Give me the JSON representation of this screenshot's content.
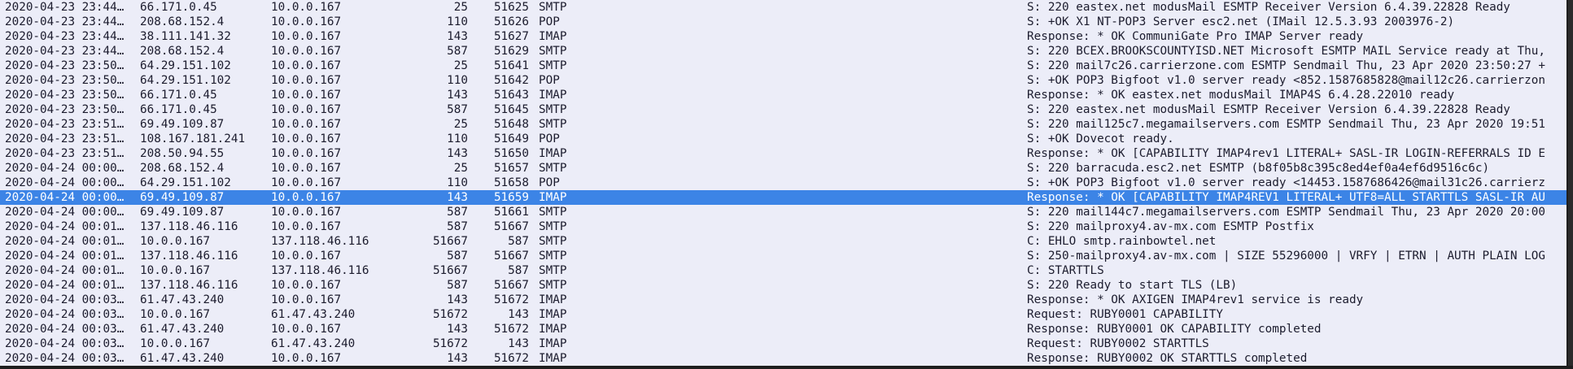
{
  "packets": [
    {
      "time": "2020-04-23 23:44…",
      "src": "66.171.0.45",
      "dst": "10.0.0.167",
      "sport": "25",
      "dport": "51625",
      "proto": "SMTP",
      "info": "S: 220 eastex.net modusMail ESMTP Receiver Version 6.4.39.22828 Ready",
      "selected": false
    },
    {
      "time": "2020-04-23 23:44…",
      "src": "208.68.152.4",
      "dst": "10.0.0.167",
      "sport": "110",
      "dport": "51626",
      "proto": "POP",
      "info": "S: +OK X1 NT-POP3 Server esc2.net (IMail 12.5.3.93 2003976-2)",
      "selected": false
    },
    {
      "time": "2020-04-23 23:44…",
      "src": "38.111.141.32",
      "dst": "10.0.0.167",
      "sport": "143",
      "dport": "51627",
      "proto": "IMAP",
      "info": "Response: * OK CommuniGate Pro IMAP Server ready",
      "selected": false
    },
    {
      "time": "2020-04-23 23:44…",
      "src": "208.68.152.4",
      "dst": "10.0.0.167",
      "sport": "587",
      "dport": "51629",
      "proto": "SMTP",
      "info": "S: 220 BCEX.BROOKSCOUNTYISD.NET Microsoft ESMTP MAIL Service ready at Thu,",
      "selected": false
    },
    {
      "time": "2020-04-23 23:50…",
      "src": "64.29.151.102",
      "dst": "10.0.0.167",
      "sport": "25",
      "dport": "51641",
      "proto": "SMTP",
      "info": "S: 220 mail7c26.carrierzone.com ESMTP Sendmail Thu, 23 Apr 2020 23:50:27 +",
      "selected": false
    },
    {
      "time": "2020-04-23 23:50…",
      "src": "64.29.151.102",
      "dst": "10.0.0.167",
      "sport": "110",
      "dport": "51642",
      "proto": "POP",
      "info": "S: +OK POP3 Bigfoot v1.0 server ready <852.1587685828@mail12c26.carrierzon",
      "selected": false
    },
    {
      "time": "2020-04-23 23:50…",
      "src": "66.171.0.45",
      "dst": "10.0.0.167",
      "sport": "143",
      "dport": "51643",
      "proto": "IMAP",
      "info": "Response: * OK eastex.net modusMail IMAP4S 6.4.28.22010 ready",
      "selected": false
    },
    {
      "time": "2020-04-23 23:50…",
      "src": "66.171.0.45",
      "dst": "10.0.0.167",
      "sport": "587",
      "dport": "51645",
      "proto": "SMTP",
      "info": "S: 220 eastex.net modusMail ESMTP Receiver Version 6.4.39.22828 Ready",
      "selected": false
    },
    {
      "time": "2020-04-23 23:51…",
      "src": "69.49.109.87",
      "dst": "10.0.0.167",
      "sport": "25",
      "dport": "51648",
      "proto": "SMTP",
      "info": "S: 220 mail125c7.megamailservers.com ESMTP Sendmail Thu, 23 Apr 2020 19:51",
      "selected": false
    },
    {
      "time": "2020-04-23 23:51…",
      "src": "108.167.181.241",
      "dst": "10.0.0.167",
      "sport": "110",
      "dport": "51649",
      "proto": "POP",
      "info": "S: +OK Dovecot ready.",
      "selected": false
    },
    {
      "time": "2020-04-23 23:51…",
      "src": "208.50.94.55",
      "dst": "10.0.0.167",
      "sport": "143",
      "dport": "51650",
      "proto": "IMAP",
      "info": "Response: * OK [CAPABILITY IMAP4rev1 LITERAL+ SASL-IR LOGIN-REFERRALS ID E",
      "selected": false
    },
    {
      "time": "2020-04-24 00:00…",
      "src": "208.68.152.4",
      "dst": "10.0.0.167",
      "sport": "25",
      "dport": "51657",
      "proto": "SMTP",
      "info": "S: 220 barracuda.esc2.net ESMTP (b8f05b8c395c8ed4ef0a4ef6d9516c6c)",
      "selected": false
    },
    {
      "time": "2020-04-24 00:00…",
      "src": "64.29.151.102",
      "dst": "10.0.0.167",
      "sport": "110",
      "dport": "51658",
      "proto": "POP",
      "info": "S: +OK POP3 Bigfoot v1.0 server ready <14453.1587686426@mail31c26.carrierz",
      "selected": false
    },
    {
      "time": "2020-04-24 00:00…",
      "src": "69.49.109.87",
      "dst": "10.0.0.167",
      "sport": "143",
      "dport": "51659",
      "proto": "IMAP",
      "info": "Response: * OK [CAPABILITY IMAP4REV1 LITERAL+ UTF8=ALL STARTTLS SASL-IR AU",
      "selected": true
    },
    {
      "time": "2020-04-24 00:00…",
      "src": "69.49.109.87",
      "dst": "10.0.0.167",
      "sport": "587",
      "dport": "51661",
      "proto": "SMTP",
      "info": "S: 220 mail144c7.megamailservers.com ESMTP Sendmail Thu, 23 Apr 2020 20:00",
      "selected": false
    },
    {
      "time": "2020-04-24 00:01…",
      "src": "137.118.46.116",
      "dst": "10.0.0.167",
      "sport": "587",
      "dport": "51667",
      "proto": "SMTP",
      "info": "S: 220 mailproxy4.av-mx.com ESMTP Postfix",
      "selected": false
    },
    {
      "time": "2020-04-24 00:01…",
      "src": "10.0.0.167",
      "dst": "137.118.46.116",
      "sport": "51667",
      "dport": "587",
      "proto": "SMTP",
      "info": "C: EHLO smtp.rainbowtel.net",
      "selected": false
    },
    {
      "time": "2020-04-24 00:01…",
      "src": "137.118.46.116",
      "dst": "10.0.0.167",
      "sport": "587",
      "dport": "51667",
      "proto": "SMTP",
      "info": "S: 250-mailproxy4.av-mx.com | SIZE 55296000 | VRFY | ETRN | AUTH PLAIN LOG",
      "selected": false
    },
    {
      "time": "2020-04-24 00:01…",
      "src": "10.0.0.167",
      "dst": "137.118.46.116",
      "sport": "51667",
      "dport": "587",
      "proto": "SMTP",
      "info": "C: STARTTLS",
      "selected": false
    },
    {
      "time": "2020-04-24 00:01…",
      "src": "137.118.46.116",
      "dst": "10.0.0.167",
      "sport": "587",
      "dport": "51667",
      "proto": "SMTP",
      "info": "S: 220 Ready to start TLS (LB)",
      "selected": false
    },
    {
      "time": "2020-04-24 00:03…",
      "src": "61.47.43.240",
      "dst": "10.0.0.167",
      "sport": "143",
      "dport": "51672",
      "proto": "IMAP",
      "info": "Response: * OK AXIGEN IMAP4rev1 service is ready",
      "selected": false
    },
    {
      "time": "2020-04-24 00:03…",
      "src": "10.0.0.167",
      "dst": "61.47.43.240",
      "sport": "51672",
      "dport": "143",
      "proto": "IMAP",
      "info": "Request: RUBY0001 CAPABILITY",
      "selected": false
    },
    {
      "time": "2020-04-24 00:03…",
      "src": "61.47.43.240",
      "dst": "10.0.0.167",
      "sport": "143",
      "dport": "51672",
      "proto": "IMAP",
      "info": "Response: RUBY0001 OK CAPABILITY completed",
      "selected": false
    },
    {
      "time": "2020-04-24 00:03…",
      "src": "10.0.0.167",
      "dst": "61.47.43.240",
      "sport": "51672",
      "dport": "143",
      "proto": "IMAP",
      "info": "Request: RUBY0002 STARTTLS",
      "selected": false
    },
    {
      "time": "2020-04-24 00:03…",
      "src": "61.47.43.240",
      "dst": "10.0.0.167",
      "sport": "143",
      "dport": "51672",
      "proto": "IMAP",
      "info": "Response: RUBY0002 OK STARTTLS completed",
      "selected": false
    }
  ]
}
